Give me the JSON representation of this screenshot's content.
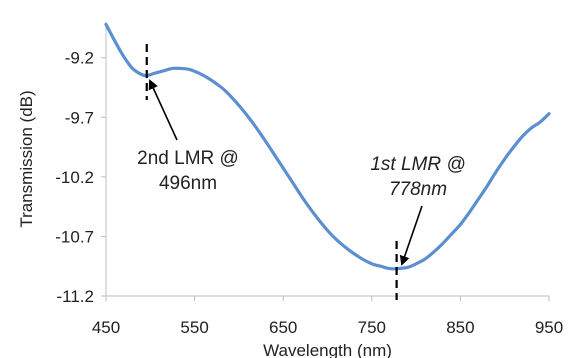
{
  "chart_data": {
    "type": "line",
    "xlabel": "Wavelength (nm)",
    "ylabel": "Transmission (dB)",
    "xlim": [
      450,
      950
    ],
    "ylim": [
      -11.2,
      -8.9
    ],
    "xticks": [
      450,
      550,
      650,
      750,
      850,
      950
    ],
    "xtick_labels": [
      "450",
      "550",
      "650",
      "750",
      "850",
      "950"
    ],
    "yticks": [
      -11.2,
      -10.7,
      -10.2,
      -9.7,
      -9.2
    ],
    "ytick_labels": [
      "-11.2",
      "-10.7",
      "-10.2",
      "-9.7",
      "-9.2"
    ],
    "grid": false,
    "legend": "none",
    "series": [
      {
        "color": "#5b8fd0",
        "x": [
          450,
          460,
          470,
          480,
          490,
          496,
          505,
          515,
          525,
          535,
          545,
          555,
          565,
          575,
          585,
          600,
          615,
          630,
          645,
          660,
          675,
          690,
          705,
          720,
          735,
          750,
          760,
          770,
          778,
          790,
          800,
          810,
          820,
          830,
          840,
          850,
          860,
          870,
          880,
          890,
          900,
          910,
          920,
          930,
          940,
          950
        ],
        "y": [
          -8.92,
          -9.06,
          -9.19,
          -9.29,
          -9.34,
          -9.35,
          -9.33,
          -9.31,
          -9.29,
          -9.29,
          -9.3,
          -9.33,
          -9.37,
          -9.42,
          -9.48,
          -9.6,
          -9.74,
          -9.9,
          -10.07,
          -10.24,
          -10.41,
          -10.56,
          -10.69,
          -10.79,
          -10.87,
          -10.93,
          -10.95,
          -10.97,
          -10.97,
          -10.96,
          -10.93,
          -10.89,
          -10.83,
          -10.76,
          -10.68,
          -10.6,
          -10.5,
          -10.39,
          -10.28,
          -10.16,
          -10.05,
          -9.95,
          -9.86,
          -9.79,
          -9.74,
          -9.67
        ]
      }
    ],
    "annotations": [
      {
        "id": "lmr2",
        "lines": [
          "2nd LMR @",
          "496nm"
        ],
        "italic": false,
        "x": 496,
        "y": -9.35
      },
      {
        "id": "lmr1",
        "lines": [
          "1st LMR @",
          "778nm"
        ],
        "italic": true,
        "x": 778,
        "y": -10.97
      }
    ]
  }
}
